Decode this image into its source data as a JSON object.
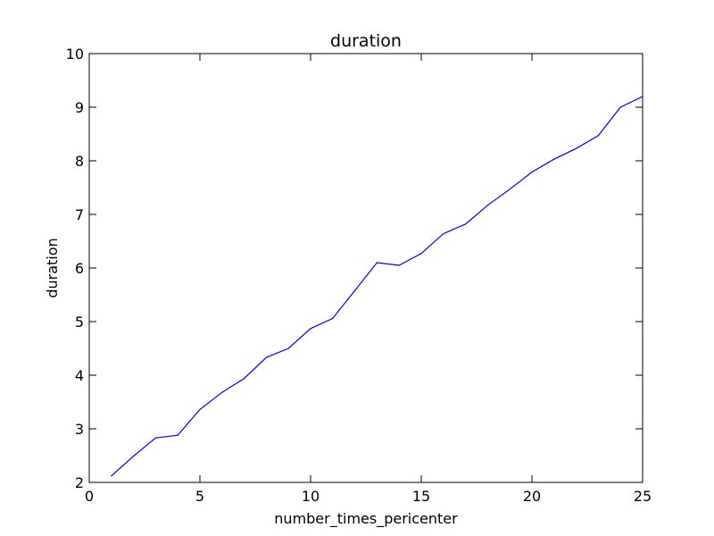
{
  "chart_data": {
    "type": "line",
    "title": "duration",
    "xlabel": "number_times_pericenter",
    "ylabel": "duration",
    "xlim": [
      0,
      25
    ],
    "ylim": [
      2,
      10
    ],
    "x_ticks": [
      "0",
      "5",
      "10",
      "15",
      "20",
      "25"
    ],
    "y_ticks": [
      "2",
      "3",
      "4",
      "5",
      "6",
      "7",
      "8",
      "9",
      "10"
    ],
    "grid": false,
    "legend": "none",
    "series": [
      {
        "color": "#0000ff",
        "x": [
          1,
          2,
          3,
          4,
          5,
          6,
          7,
          8,
          9,
          10,
          11,
          12,
          13,
          14,
          15,
          16,
          17,
          18,
          19,
          20,
          21,
          22,
          23,
          24,
          25
        ],
        "y": [
          2.12,
          2.49,
          2.83,
          2.88,
          3.36,
          3.68,
          3.94,
          4.33,
          4.5,
          4.87,
          5.06,
          5.58,
          6.1,
          6.05,
          6.27,
          6.64,
          6.82,
          7.17,
          7.47,
          7.79,
          8.03,
          8.23,
          8.47,
          9.0,
          9.2
        ]
      }
    ]
  }
}
